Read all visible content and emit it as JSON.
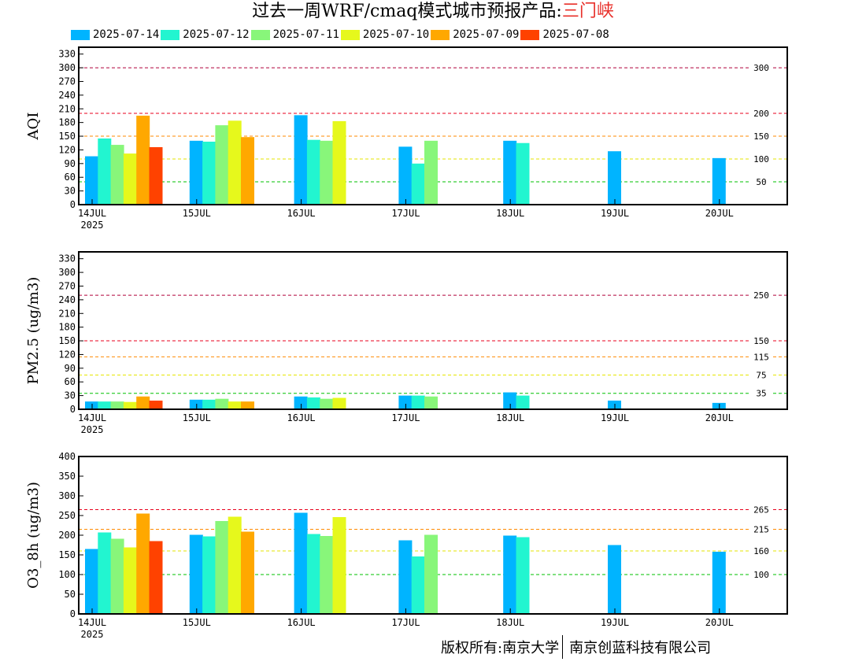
{
  "title": {
    "main": "过去一周WRF/cmaq模式城市预报产品:",
    "city": "三门峡"
  },
  "legend": [
    {
      "label": "2025-07-14",
      "color": "#00b4ff"
    },
    {
      "label": "2025-07-12",
      "color": "#22f5d0"
    },
    {
      "label": "2025-07-11",
      "color": "#88f67a"
    },
    {
      "label": "2025-07-10",
      "color": "#e6f81c"
    },
    {
      "label": "2025-07-09",
      "color": "#ffa800"
    },
    {
      "label": "2025-07-08",
      "color": "#ff4200"
    }
  ],
  "footer": {
    "left": "版权所有:南京大学",
    "right": "南京创蓝科技有限公司"
  },
  "chart_data": [
    {
      "type": "bar",
      "ylabel": "AQI",
      "ylim": [
        0,
        345
      ],
      "yticks": [
        0,
        30,
        60,
        90,
        120,
        150,
        180,
        210,
        240,
        270,
        300,
        330
      ],
      "categories": [
        "14JUL",
        "15JUL",
        "16JUL",
        "17JUL",
        "18JUL",
        "19JUL",
        "20JUL"
      ],
      "year_label": "2025",
      "thresholds": [
        {
          "value": 300,
          "label": "300",
          "color": "#b0003a"
        },
        {
          "value": 200,
          "label": "200",
          "color": "#e8001c"
        },
        {
          "value": 150,
          "label": "150",
          "color": "#ff8a00"
        },
        {
          "value": 100,
          "label": "100",
          "color": "#e6e600"
        },
        {
          "value": 50,
          "label": "50",
          "color": "#00c000"
        }
      ],
      "series": [
        {
          "name": "2025-07-14",
          "values": [
            106,
            140,
            196,
            127,
            140,
            117,
            102
          ]
        },
        {
          "name": "2025-07-12",
          "values": [
            145,
            138,
            142,
            90,
            135,
            null,
            null
          ]
        },
        {
          "name": "2025-07-11",
          "values": [
            131,
            174,
            140,
            140,
            null,
            null,
            null
          ]
        },
        {
          "name": "2025-07-10",
          "values": [
            112,
            184,
            183,
            null,
            null,
            null,
            null
          ]
        },
        {
          "name": "2025-07-09",
          "values": [
            195,
            148,
            null,
            null,
            null,
            null,
            null
          ]
        },
        {
          "name": "2025-07-08",
          "values": [
            126,
            null,
            null,
            null,
            null,
            null,
            null
          ]
        }
      ]
    },
    {
      "type": "bar",
      "ylabel": "PM2.5 (ug/m3)",
      "ylim": [
        0,
        345
      ],
      "yticks": [
        0,
        30,
        60,
        90,
        120,
        150,
        180,
        210,
        240,
        270,
        300,
        330
      ],
      "categories": [
        "14JUL",
        "15JUL",
        "16JUL",
        "17JUL",
        "18JUL",
        "19JUL",
        "20JUL"
      ],
      "year_label": "2025",
      "thresholds": [
        {
          "value": 250,
          "label": "250",
          "color": "#b0003a"
        },
        {
          "value": 150,
          "label": "150",
          "color": "#e8001c"
        },
        {
          "value": 115,
          "label": "115",
          "color": "#ff8a00"
        },
        {
          "value": 75,
          "label": "75",
          "color": "#e6e600"
        },
        {
          "value": 35,
          "label": "35",
          "color": "#00c000"
        }
      ],
      "series": [
        {
          "name": "2025-07-14",
          "values": [
            17,
            21,
            28,
            30,
            37,
            19,
            14
          ]
        },
        {
          "name": "2025-07-12",
          "values": [
            17,
            21,
            26,
            30,
            30,
            null,
            null
          ]
        },
        {
          "name": "2025-07-11",
          "values": [
            17,
            23,
            23,
            28,
            null,
            null,
            null
          ]
        },
        {
          "name": "2025-07-10",
          "values": [
            16,
            17,
            25,
            null,
            null,
            null,
            null
          ]
        },
        {
          "name": "2025-07-09",
          "values": [
            28,
            17,
            null,
            null,
            null,
            null,
            null
          ]
        },
        {
          "name": "2025-07-08",
          "values": [
            19,
            null,
            null,
            null,
            null,
            null,
            null
          ]
        }
      ]
    },
    {
      "type": "bar",
      "ylabel": "O3_8h (ug/m3)",
      "ylim": [
        0,
        400
      ],
      "yticks": [
        0,
        50,
        100,
        150,
        200,
        250,
        300,
        350,
        400
      ],
      "categories": [
        "14JUL",
        "15JUL",
        "16JUL",
        "17JUL",
        "18JUL",
        "19JUL",
        "20JUL"
      ],
      "year_label": "2025",
      "thresholds": [
        {
          "value": 265,
          "label": "265",
          "color": "#e8001c"
        },
        {
          "value": 215,
          "label": "215",
          "color": "#ff8a00"
        },
        {
          "value": 160,
          "label": "160",
          "color": "#e6e600"
        },
        {
          "value": 100,
          "label": "100",
          "color": "#00c000"
        }
      ],
      "series": [
        {
          "name": "2025-07-14",
          "values": [
            165,
            201,
            257,
            187,
            199,
            175,
            158
          ]
        },
        {
          "name": "2025-07-12",
          "values": [
            207,
            197,
            203,
            146,
            195,
            null,
            null
          ]
        },
        {
          "name": "2025-07-11",
          "values": [
            191,
            236,
            198,
            201,
            null,
            null,
            null
          ]
        },
        {
          "name": "2025-07-10",
          "values": [
            169,
            247,
            246,
            null,
            null,
            null,
            null
          ]
        },
        {
          "name": "2025-07-09",
          "values": [
            255,
            209,
            null,
            null,
            null,
            null,
            null
          ]
        },
        {
          "name": "2025-07-08",
          "values": [
            185,
            null,
            null,
            null,
            null,
            null,
            null
          ]
        }
      ]
    }
  ]
}
